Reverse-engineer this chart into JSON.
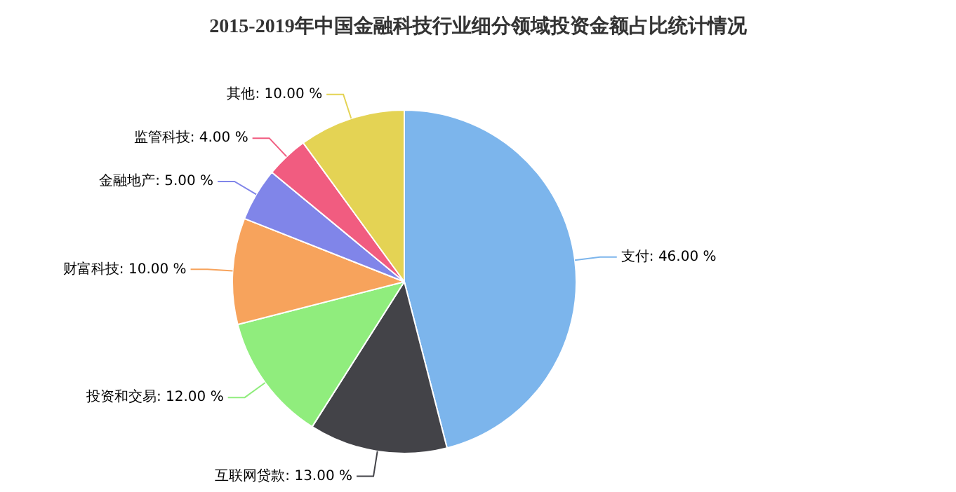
{
  "chart_data": {
    "type": "pie",
    "title": "2015-2019年中国金融科技行业细分领域投资金额占比统计情况",
    "categories": [
      "支付",
      "互联网贷款",
      "投资和交易",
      "财富科技",
      "金融地产",
      "监管科技",
      "其他"
    ],
    "values": [
      46,
      13,
      12,
      10,
      5,
      4,
      10
    ],
    "value_labels": [
      "46.00 %",
      "13.00 %",
      "12.00 %",
      "10.00 %",
      "5.00 %",
      "4.00 %",
      "10.00 %"
    ],
    "colors": [
      "#7cb5ec",
      "#434348",
      "#90ed7d",
      "#f7a35c",
      "#8085e9",
      "#f15c80",
      "#e4d354"
    ],
    "legend": false
  }
}
